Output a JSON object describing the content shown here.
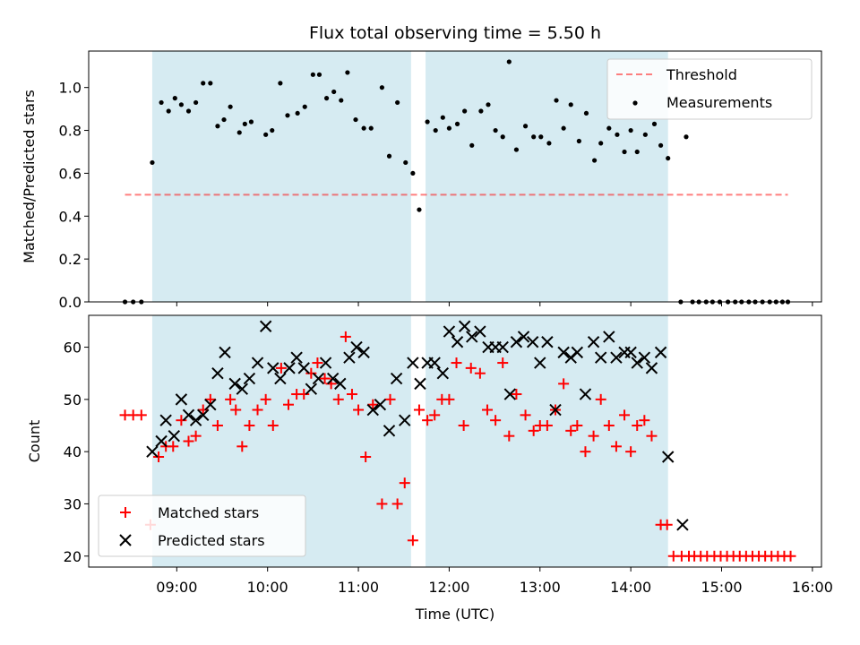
{
  "title": "Flux total observing time = 5.50 h",
  "colors": {
    "shade": "#add8e6",
    "threshold": "#ff0000",
    "measurement": "#000000",
    "matched": "#ff0000",
    "predicted": "#000000"
  },
  "chart_data": [
    {
      "type": "scatter",
      "panel": "top",
      "ylabel": "Matched/Predicted stars",
      "ylim": [
        0,
        1.17
      ],
      "xlim_hours": [
        8.03,
        16.1
      ],
      "yticks": [
        0.0,
        0.2,
        0.4,
        0.6,
        0.8,
        1.0
      ],
      "ytick_labels": [
        "0.0",
        "0.2",
        "0.4",
        "0.6",
        "0.8",
        "1.0"
      ],
      "shaded_intervals": [
        [
          8.73,
          11.58
        ],
        [
          11.74,
          14.41
        ]
      ],
      "threshold": {
        "y": 0.5,
        "x_range": [
          8.43,
          15.73
        ],
        "style": "dashed"
      },
      "legend": {
        "position": "top-right",
        "entries": [
          "Threshold",
          "Measurements"
        ]
      },
      "series": [
        {
          "name": "Measurements",
          "marker": "dot",
          "x": [
            8.43,
            8.52,
            8.61,
            8.73,
            8.83,
            8.91,
            8.98,
            9.05,
            9.13,
            9.21,
            9.29,
            9.37,
            9.45,
            9.52,
            9.59,
            9.69,
            9.75,
            9.82,
            9.98,
            10.05,
            10.14,
            10.22,
            10.33,
            10.41,
            10.5,
            10.57,
            10.65,
            10.73,
            10.81,
            10.88,
            10.97,
            11.06,
            11.14,
            11.26,
            11.34,
            11.43,
            11.52,
            11.6,
            11.67,
            11.76,
            11.85,
            11.93,
            12.0,
            12.09,
            12.17,
            12.25,
            12.35,
            12.43,
            12.51,
            12.59,
            12.66,
            12.74,
            12.84,
            12.93,
            13.01,
            13.1,
            13.18,
            13.26,
            13.34,
            13.43,
            13.51,
            13.6,
            13.67,
            13.76,
            13.85,
            13.93,
            14.0,
            14.07,
            14.16,
            14.26,
            14.33,
            14.41,
            14.55,
            14.61,
            14.68,
            14.75,
            14.83,
            14.9,
            14.98,
            15.07,
            15.15,
            15.22,
            15.3,
            15.37,
            15.45,
            15.53,
            15.6,
            15.67,
            15.73
          ],
          "y": [
            0.0,
            0.0,
            0.0,
            0.65,
            0.93,
            0.89,
            0.95,
            0.92,
            0.89,
            0.93,
            1.02,
            1.02,
            0.82,
            0.85,
            0.91,
            0.79,
            0.83,
            0.84,
            0.78,
            0.8,
            1.02,
            0.87,
            0.88,
            0.91,
            1.06,
            1.06,
            0.95,
            0.98,
            0.94,
            1.07,
            0.85,
            0.81,
            0.81,
            1.0,
            0.68,
            0.93,
            0.65,
            0.6,
            0.43,
            0.84,
            0.8,
            0.86,
            0.81,
            0.83,
            0.89,
            0.73,
            0.89,
            0.92,
            0.8,
            0.77,
            1.12,
            0.71,
            0.82,
            0.77,
            0.77,
            0.74,
            0.94,
            0.81,
            0.92,
            0.75,
            0.88,
            0.66,
            0.74,
            0.81,
            0.78,
            0.7,
            0.8,
            0.7,
            0.78,
            0.83,
            0.73,
            0.67,
            0.0,
            0.77,
            0.0,
            0.0,
            0.0,
            0.0,
            0.0,
            0.0,
            0.0,
            0.0,
            0.0,
            0.0,
            0.0,
            0.0,
            0.0,
            0.0,
            0.0
          ]
        }
      ]
    },
    {
      "type": "scatter",
      "panel": "bottom",
      "xlabel": "Time (UTC)",
      "ylabel": "Count",
      "ylim": [
        17.9,
        66.1
      ],
      "xlim_hours": [
        8.03,
        16.1
      ],
      "yticks": [
        20,
        30,
        40,
        50,
        60
      ],
      "ytick_labels": [
        "20",
        "30",
        "40",
        "50",
        "60"
      ],
      "xticks_hours": [
        9,
        10,
        11,
        12,
        13,
        14,
        15,
        16
      ],
      "xtick_labels": [
        "09:00",
        "10:00",
        "11:00",
        "12:00",
        "13:00",
        "14:00",
        "15:00",
        "16:00"
      ],
      "shaded_intervals": [
        [
          8.73,
          11.58
        ],
        [
          11.74,
          14.41
        ]
      ],
      "legend": {
        "position": "bottom-left",
        "entries": [
          "Matched stars",
          "Predicted stars"
        ]
      },
      "series": [
        {
          "name": "Matched stars",
          "marker": "plus",
          "x": [
            8.43,
            8.52,
            8.61,
            8.71,
            8.8,
            8.88,
            8.96,
            9.05,
            9.13,
            9.21,
            9.29,
            9.37,
            9.45,
            9.59,
            9.65,
            9.72,
            9.8,
            9.89,
            9.98,
            10.06,
            10.15,
            10.23,
            10.32,
            10.4,
            10.48,
            10.55,
            10.63,
            10.7,
            10.78,
            10.86,
            10.93,
            11.0,
            11.08,
            11.16,
            11.26,
            11.35,
            11.43,
            11.51,
            11.6,
            11.67,
            11.76,
            11.84,
            11.92,
            12.0,
            12.08,
            12.16,
            12.24,
            12.34,
            12.42,
            12.51,
            12.59,
            12.66,
            12.74,
            12.84,
            12.93,
            13.0,
            13.08,
            13.17,
            13.26,
            13.34,
            13.41,
            13.5,
            13.59,
            13.67,
            13.76,
            13.84,
            13.93,
            14.0,
            14.07,
            14.15,
            14.23,
            14.33,
            14.4,
            14.47,
            14.56,
            14.64,
            14.7,
            14.77,
            14.84,
            14.92,
            14.99,
            15.06,
            15.13,
            15.2,
            15.27,
            15.34,
            15.41,
            15.48,
            15.55,
            15.62,
            15.69,
            15.76
          ],
          "y": [
            47,
            47,
            47,
            26,
            39,
            41,
            41,
            46,
            42,
            43,
            48,
            50,
            45,
            50,
            48,
            41,
            45,
            48,
            50,
            45,
            56,
            49,
            51,
            51,
            55,
            57,
            54,
            53,
            50,
            62,
            51,
            48,
            39,
            49,
            30,
            50,
            30,
            34,
            23,
            48,
            46,
            47,
            50,
            50,
            57,
            45,
            56,
            55,
            48,
            46,
            57,
            43,
            51,
            47,
            44,
            45,
            45,
            48,
            53,
            44,
            45,
            40,
            43,
            50,
            45,
            41,
            47,
            40,
            45,
            46,
            43,
            26,
            26,
            20,
            20,
            20,
            20,
            20,
            20,
            20,
            20,
            20,
            20,
            20,
            20,
            20,
            20,
            20,
            20,
            20,
            20,
            20
          ]
        },
        {
          "name": "Predicted stars",
          "marker": "x",
          "x": [
            8.73,
            8.83,
            8.88,
            8.97,
            9.05,
            9.13,
            9.21,
            9.29,
            9.37,
            9.45,
            9.53,
            9.64,
            9.72,
            9.8,
            9.89,
            9.98,
            10.06,
            10.14,
            10.24,
            10.32,
            10.4,
            10.48,
            10.56,
            10.64,
            10.72,
            10.8,
            10.9,
            10.98,
            11.06,
            11.16,
            11.24,
            11.34,
            11.42,
            11.51,
            11.6,
            11.68,
            11.76,
            11.84,
            11.93,
            12.0,
            12.09,
            12.17,
            12.25,
            12.34,
            12.43,
            12.51,
            12.59,
            12.67,
            12.74,
            12.82,
            12.92,
            13.0,
            13.08,
            13.17,
            13.26,
            13.34,
            13.41,
            13.5,
            13.59,
            13.67,
            13.76,
            13.84,
            13.93,
            14.0,
            14.07,
            14.15,
            14.23,
            14.33,
            14.41,
            14.57
          ],
          "y": [
            40,
            42,
            46,
            43,
            50,
            47,
            46,
            47,
            49,
            55,
            59,
            53,
            52,
            54,
            57,
            64,
            56,
            54,
            56,
            58,
            56,
            52,
            54,
            57,
            54,
            53,
            58,
            60,
            59,
            48,
            49,
            44,
            54,
            46,
            57,
            53,
            57,
            57,
            55,
            63,
            61,
            64,
            62,
            63,
            60,
            60,
            60,
            51,
            61,
            62,
            61,
            57,
            61,
            48,
            59,
            58,
            59,
            51,
            61,
            58,
            62,
            58,
            59,
            59,
            57,
            58,
            56,
            59,
            39,
            26
          ]
        }
      ]
    }
  ],
  "legends": {
    "top": {
      "threshold_label": "Threshold",
      "measurements_label": "Measurements"
    },
    "bottom": {
      "matched_label": "Matched stars",
      "predicted_label": "Predicted stars"
    }
  }
}
